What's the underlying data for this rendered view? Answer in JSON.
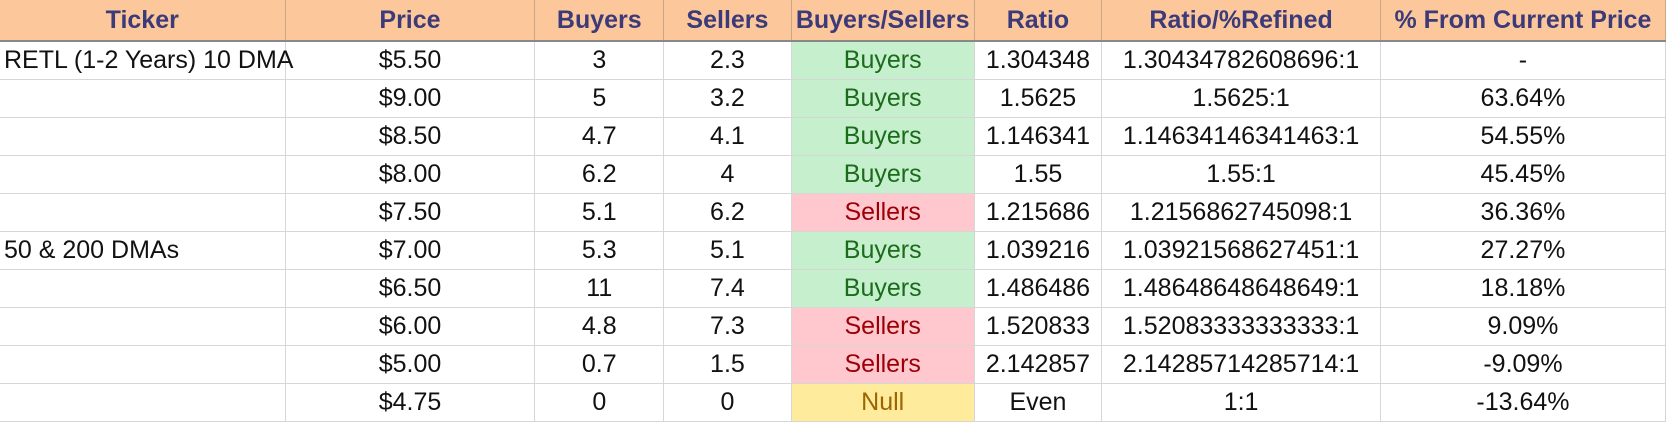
{
  "columns": [
    "Ticker",
    "Price",
    "Buyers",
    "Sellers",
    "Buyers/Sellers",
    "Ratio",
    "Ratio/%Refined",
    "% From Current Price"
  ],
  "rows": [
    {
      "ticker": "RETL (1-2 Years) 10 DMA",
      "price": "$5.50",
      "buyers": "3",
      "sellers": "2.3",
      "bs": "Buyers",
      "ratio": "1.304348",
      "refined": "1.30434782608696:1",
      "pct": "-"
    },
    {
      "ticker": "",
      "price": "$9.00",
      "buyers": "5",
      "sellers": "3.2",
      "bs": "Buyers",
      "ratio": "1.5625",
      "refined": "1.5625:1",
      "pct": "63.64%"
    },
    {
      "ticker": "",
      "price": "$8.50",
      "buyers": "4.7",
      "sellers": "4.1",
      "bs": "Buyers",
      "ratio": "1.146341",
      "refined": "1.14634146341463:1",
      "pct": "54.55%"
    },
    {
      "ticker": "",
      "price": "$8.00",
      "buyers": "6.2",
      "sellers": "4",
      "bs": "Buyers",
      "ratio": "1.55",
      "refined": "1.55:1",
      "pct": "45.45%"
    },
    {
      "ticker": "",
      "price": "$7.50",
      "buyers": "5.1",
      "sellers": "6.2",
      "bs": "Sellers",
      "ratio": "1.215686",
      "refined": "1.2156862745098:1",
      "pct": "36.36%"
    },
    {
      "ticker": "50 & 200 DMAs",
      "price": "$7.00",
      "buyers": "5.3",
      "sellers": "5.1",
      "bs": "Buyers",
      "ratio": "1.039216",
      "refined": "1.03921568627451:1",
      "pct": "27.27%"
    },
    {
      "ticker": "",
      "price": "$6.50",
      "buyers": "11",
      "sellers": "7.4",
      "bs": "Buyers",
      "ratio": "1.486486",
      "refined": "1.48648648648649:1",
      "pct": "18.18%"
    },
    {
      "ticker": "",
      "price": "$6.00",
      "buyers": "4.8",
      "sellers": "7.3",
      "bs": "Sellers",
      "ratio": "1.520833",
      "refined": "1.52083333333333:1",
      "pct": "9.09%"
    },
    {
      "ticker": "",
      "price": "$5.00",
      "buyers": "0.7",
      "sellers": "1.5",
      "bs": "Sellers",
      "ratio": "2.142857",
      "refined": "2.14285714285714:1",
      "pct": "-9.09%"
    },
    {
      "ticker": "",
      "price": "$4.75",
      "buyers": "0",
      "sellers": "0",
      "bs": "Null",
      "ratio": "Even",
      "refined": "1:1",
      "pct": "-13.64%"
    }
  ]
}
